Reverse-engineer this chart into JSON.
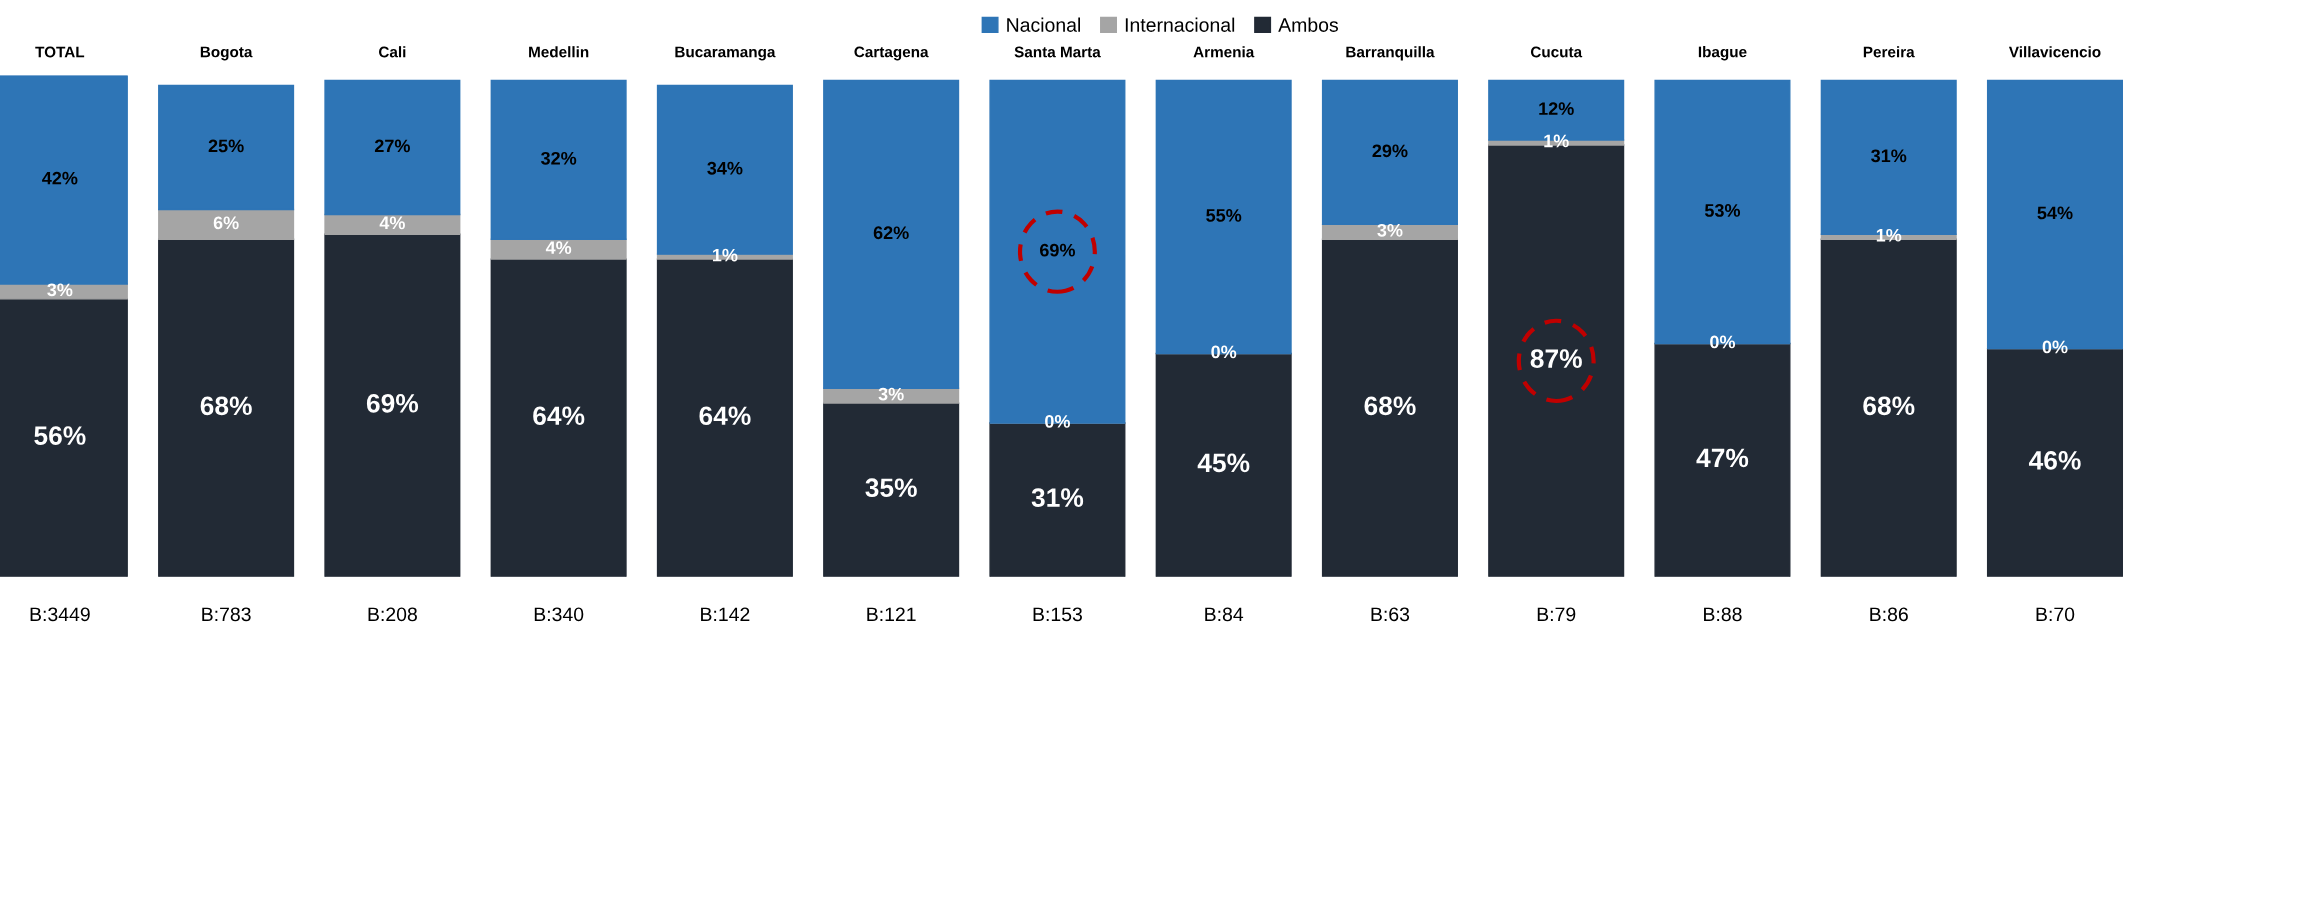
{
  "chart_data": {
    "type": "bar",
    "stacked": true,
    "legend": "top",
    "categories": [
      "TOTAL",
      "Bogota",
      "Cali",
      "Medellin",
      "Bucaramanga",
      "Cartagena",
      "Santa Marta",
      "Armenia",
      "Barranquilla",
      "Cucuta",
      "Ibague",
      "Pereira",
      "Villavicencio"
    ],
    "series": [
      {
        "name": "Ambos",
        "color": "#222a35",
        "values": [
          56,
          68,
          69,
          64,
          64,
          35,
          31,
          45,
          68,
          87,
          47,
          68,
          46
        ],
        "value_labels": [
          "56%",
          "68%",
          "69%",
          "64%",
          "64%",
          "35%",
          "31%",
          "45%",
          "68%",
          "87%",
          "47%",
          "68%",
          "46%"
        ]
      },
      {
        "name": "Internacional",
        "color": "#a5a5a5",
        "values": [
          3,
          6,
          4,
          4,
          1,
          3,
          0,
          0,
          3,
          1,
          0,
          1,
          0
        ],
        "value_labels": [
          "3%",
          "6%",
          "4%",
          "4%",
          "1%",
          "3%",
          "0%",
          "0%",
          "3%",
          "1%",
          "0%",
          "1%",
          "0%"
        ]
      },
      {
        "name": "Nacional",
        "color": "#2e75b6",
        "values": [
          42,
          25,
          27,
          32,
          34,
          62,
          69,
          55,
          29,
          12,
          53,
          31,
          54
        ],
        "value_labels": [
          "42%",
          "25%",
          "27%",
          "32%",
          "34%",
          "62%",
          "69%",
          "55%",
          "29%",
          "12%",
          "53%",
          "31%",
          "54%"
        ]
      }
    ],
    "annotations": [
      "B:3449",
      "B:783",
      "B:208",
      "B:340",
      "B:142",
      "B:121",
      "B:153",
      "B:84",
      "B:63",
      "B:79",
      "B:88",
      "B:86",
      "B:70"
    ]
  }
}
